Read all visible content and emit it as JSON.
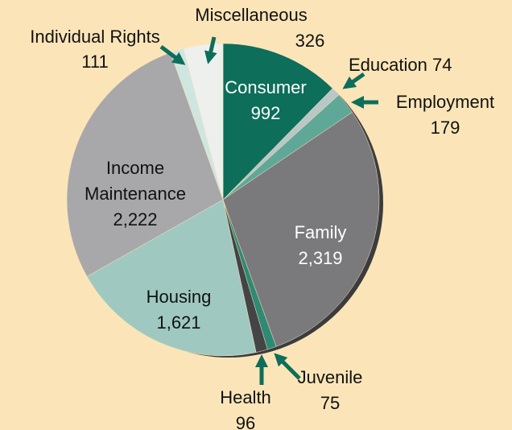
{
  "chart_data": {
    "type": "pie",
    "categories": [
      "Consumer",
      "Education",
      "Employment",
      "Family",
      "Juvenile",
      "Health",
      "Housing",
      "Income Maintenance",
      "Individual Rights",
      "Miscellaneous"
    ],
    "values": [
      992,
      74,
      179,
      2319,
      75,
      96,
      1621,
      2222,
      111,
      326
    ],
    "value_labels": [
      "992",
      "74",
      "179",
      "2,319",
      "75",
      "96",
      "1,621",
      "2,222",
      "111",
      "326"
    ],
    "colors": [
      "#0d6e5a",
      "#b9c7c6",
      "#5fa898",
      "#7a7a7c",
      "#2e8a74",
      "#444446",
      "#9fc9c0",
      "#a8a8aa",
      "#cfe6e0",
      "#eef0ee"
    ]
  }
}
